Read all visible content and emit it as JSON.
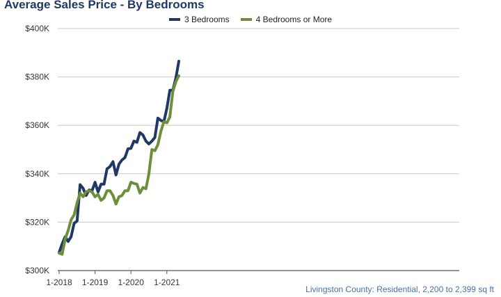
{
  "chart_data": {
    "type": "line",
    "title": "Average Sales Price - By Bedrooms",
    "footnote": "Livingston County: Residential, 2,200 to 2,399 sq ft",
    "ylim": [
      300000,
      400000
    ],
    "yticks": [
      {
        "value": 300000,
        "label": "$300K"
      },
      {
        "value": 320000,
        "label": "$320K"
      },
      {
        "value": 340000,
        "label": "$340K"
      },
      {
        "value": 360000,
        "label": "$360K"
      },
      {
        "value": 380000,
        "label": "$380K"
      },
      {
        "value": 400000,
        "label": "$400K"
      }
    ],
    "xticks": [
      {
        "index": 0,
        "label": "1-2018"
      },
      {
        "index": 12,
        "label": "1-2019"
      },
      {
        "index": 24,
        "label": "1-2020"
      },
      {
        "index": 36,
        "label": "1-2021"
      }
    ],
    "grid": true,
    "legend": "top-center",
    "series": [
      {
        "name": "3 Bedrooms",
        "color": "#1f3864",
        "values": [
          307500,
          311000,
          314000,
          312000,
          314000,
          319500,
          320500,
          335500,
          334000,
          331000,
          333300,
          333000,
          336500,
          332500,
          335700,
          335700,
          342000,
          343000,
          345000,
          339500,
          344000,
          345700,
          346700,
          350300,
          350500,
          353500,
          353000,
          357000,
          356000,
          353500,
          352300,
          353500,
          355000,
          363000,
          362000,
          361500,
          367000,
          374500,
          374500,
          379500,
          386500
        ]
      },
      {
        "name": "4 Bedrooms or More",
        "color": "#6d8f3b",
        "values": [
          307200,
          306700,
          313000,
          316500,
          321000,
          323000,
          328000,
          332000,
          330500,
          332500,
          333000,
          332500,
          330500,
          331500,
          329000,
          330000,
          333000,
          333000,
          331000,
          327500,
          330500,
          331000,
          333000,
          333000,
          336500,
          336000,
          335700,
          332000,
          334300,
          333800,
          340000,
          350000,
          349500,
          352000,
          357500,
          361500,
          361000,
          363500,
          374000,
          378000,
          380500
        ]
      }
    ]
  }
}
